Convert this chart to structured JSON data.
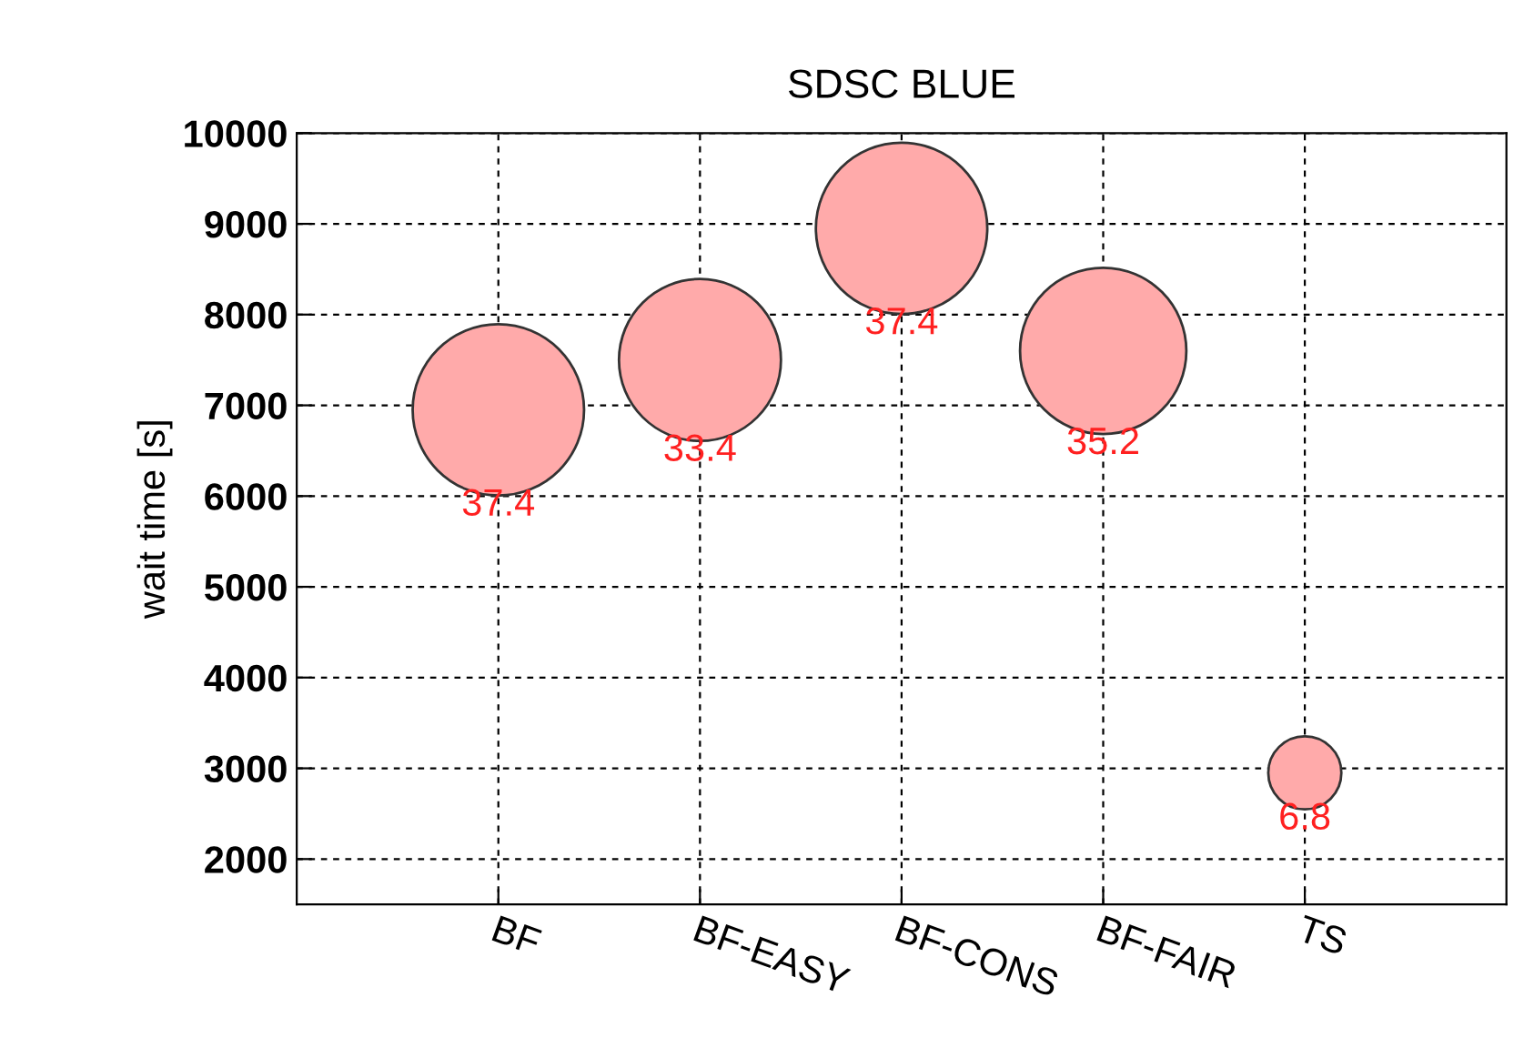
{
  "chart_data": {
    "type": "bubble",
    "title": "SDSC BLUE",
    "ylabel": "wait time [s]",
    "categories": [
      "BF",
      "BF-EASY",
      "BF-CONS",
      "BF-FAIR",
      "TS"
    ],
    "series": [
      {
        "color": "#ffaaaa",
        "values": [
          6950,
          7500,
          8950,
          7600,
          2950
        ],
        "sizes": [
          37.4,
          33.4,
          37.4,
          35.2,
          6.8
        ],
        "value_labels": [
          "37.4",
          "33.4",
          "37.4",
          "35.2",
          "6.8"
        ]
      }
    ],
    "ylim": [
      1500,
      10000
    ],
    "yticks": [
      2000,
      3000,
      4000,
      5000,
      6000,
      7000,
      8000,
      9000,
      10000
    ],
    "grid": true
  }
}
